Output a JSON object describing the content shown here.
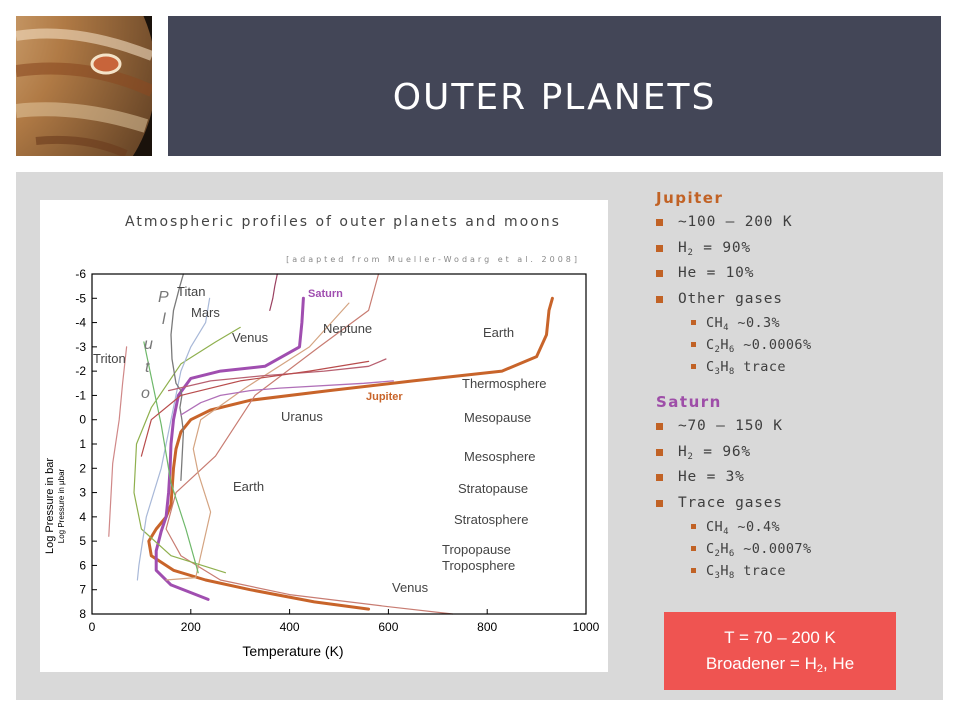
{
  "slide": {
    "title": "OUTER PLANETS",
    "image": {
      "subject": "jupiter-image"
    }
  },
  "figure": {
    "title": "Atmospheric profiles of outer planets and moons",
    "credit": "[adapted from Mueller-Wodarg et al. 2008]",
    "xlabel": "Temperature (K)",
    "ylabel": "Log Pressure in bar",
    "ylabel2": "Log Pressure in μbar",
    "pluto_label": [
      "P",
      "l",
      "u",
      "t",
      "o"
    ],
    "labels": {
      "titan": "Titan",
      "mars": "Mars",
      "venus_top": "Venus",
      "triton": "Triton",
      "saturn": "Saturn",
      "neptune": "Neptune",
      "earth_top": "Earth",
      "thermosphere": "Thermosphere",
      "jupiter": "Jupiter",
      "uranus": "Uranus",
      "mesopause": "Mesopause",
      "mesosphere": "Mesosphere",
      "earth_bottom": "Earth",
      "stratopause": "Stratopause",
      "stratosphere": "Stratosphere",
      "tropopause": "Tropopause",
      "troposphere": "Troposphere",
      "venus_bottom": "Venus"
    }
  },
  "chart_data": {
    "type": "line",
    "title": "Atmospheric profiles of outer planets and moons",
    "xlabel": "Temperature (K)",
    "ylabel": "Log Pressure in bar",
    "xlim": [
      0,
      1000
    ],
    "ylim": [
      8,
      -6
    ],
    "xticks": [
      "0",
      "200",
      "400",
      "600",
      "800",
      "1000"
    ],
    "yticks": [
      "-6",
      "-5",
      "-4",
      "-3",
      "-2",
      "-1",
      "0",
      "1",
      "2",
      "3",
      "4",
      "5",
      "6",
      "7",
      "8"
    ],
    "colors": {
      "jupiter": "#c8642a",
      "saturn": "#a04eb0",
      "jupiter_label": "#c8642a",
      "saturn_label": "#a04eb0"
    },
    "series": [
      {
        "name": "Jupiter",
        "color": "#c8642a",
        "width": 3,
        "x": [
          560,
          450,
          320,
          230,
          165,
          120,
          115,
          130,
          150,
          160,
          165,
          170,
          180,
          200,
          240,
          320,
          480,
          650,
          830,
          900,
          920,
          925,
          932
        ],
        "y": [
          7.8,
          7.5,
          7,
          6.6,
          6.2,
          5.6,
          5,
          4.5,
          4,
          3.5,
          2,
          1.2,
          0.5,
          0,
          -0.4,
          -0.8,
          -1.2,
          -1.6,
          -2,
          -2.6,
          -3.5,
          -4.5,
          -5
        ]
      },
      {
        "name": "Saturn",
        "color": "#a04eb0",
        "width": 3,
        "x": [
          235,
          160,
          130,
          130,
          140,
          150,
          155,
          158,
          160,
          165,
          175,
          200,
          260,
          350,
          420,
          425,
          428
        ],
        "y": [
          7.4,
          6.8,
          6.2,
          5.4,
          4.6,
          4,
          3,
          2,
          1,
          0,
          -1,
          -1.7,
          -2,
          -2.2,
          -3,
          -4,
          -5
        ]
      },
      {
        "name": "",
        "color": "#c87c72",
        "width": 1.2,
        "x": [
          730,
          600,
          400,
          260,
          180,
          150,
          170,
          250,
          330,
          460,
          560,
          580
        ],
        "y": [
          8,
          7.7,
          7.2,
          6.6,
          5.6,
          4.5,
          3,
          1.5,
          -1,
          -3,
          -4.5,
          -6
        ]
      },
      {
        "name": "",
        "color": "#d4a482",
        "width": 1.2,
        "x": [
          150,
          210,
          240,
          215,
          205,
          220,
          310,
          440,
          520
        ],
        "y": [
          6.6,
          6.5,
          3.8,
          2.2,
          1.2,
          0,
          -1.3,
          -3,
          -4.8
        ]
      },
      {
        "name": "",
        "color": "#8fb04e",
        "width": 1.2,
        "x": [
          270,
          160,
          100,
          85,
          90,
          120,
          180,
          250,
          300
        ],
        "y": [
          6.3,
          5.6,
          4.5,
          3,
          1,
          -0.5,
          -2.3,
          -3.2,
          -3.8
        ]
      },
      {
        "name": "",
        "color": "#a8b8d8",
        "width": 1.2,
        "x": [
          92,
          95,
          110,
          140,
          160,
          180,
          200,
          230,
          238
        ],
        "y": [
          6.6,
          6,
          4,
          2,
          0,
          -2,
          -3,
          -4,
          -5
        ]
      },
      {
        "name": "",
        "color": "#6eb86a",
        "width": 1.2,
        "x": [
          215,
          190,
          160,
          140,
          105
        ],
        "y": [
          6.3,
          4.5,
          2.6,
          0.2,
          -3.2
        ]
      },
      {
        "name": "",
        "color": "#7a7a7a",
        "width": 1.3,
        "x": [
          180,
          185,
          182,
          178,
          182,
          180,
          170,
          162,
          160,
          165,
          178,
          185
        ],
        "y": [
          2.5,
          0.5,
          0,
          -0.5,
          -1,
          -1.2,
          -1.5,
          -2.5,
          -3.5,
          -4.5,
          -5.5,
          -6
        ]
      },
      {
        "name": "",
        "color": "#b86070",
        "width": 1.3,
        "x": [
          155,
          240,
          340,
          470,
          560,
          595
        ],
        "y": [
          -1.2,
          -1.6,
          -1.8,
          -2,
          -2.2,
          -2.5
        ]
      },
      {
        "name": "",
        "color": "#b070b8",
        "width": 1.3,
        "x": [
          180,
          220,
          260,
          320,
          380,
          550,
          610
        ],
        "y": [
          -0.2,
          -0.7,
          -1,
          -1.2,
          -1.3,
          -1.5,
          -1.6
        ]
      },
      {
        "name": "",
        "color": "#d08888",
        "width": 1.2,
        "x": [
          70,
          62,
          55,
          42,
          34
        ],
        "y": [
          -3,
          -1.5,
          0,
          1.8,
          4.8
        ]
      },
      {
        "name": "",
        "color": "#b84c4c",
        "width": 1.2,
        "x": [
          560,
          440,
          300,
          180,
          120,
          100
        ],
        "y": [
          -2.4,
          -2,
          -1.6,
          -1,
          0,
          1.5
        ]
      },
      {
        "name": "",
        "color": "#9a4060",
        "width": 1.2,
        "x": [
          360,
          366,
          370,
          375
        ],
        "y": [
          -4.5,
          -5,
          -5.5,
          -6
        ]
      }
    ]
  },
  "jupiter": {
    "heading": "Jupiter",
    "items": [
      {
        "text": "~100 – 200 K"
      },
      {
        "pre": "H",
        "sub": "2",
        "post": " = 90%"
      },
      {
        "text": "He = 10%"
      },
      {
        "text": "Other gases"
      }
    ],
    "subitems": [
      {
        "a": "CH",
        "as": "4",
        "b": " ~0.3%"
      },
      {
        "a": "C",
        "as": "2",
        "b": "H",
        "bs": "6",
        "c": " ~0.0006%"
      },
      {
        "a": "C",
        "as": "3",
        "b": "H",
        "bs": "8",
        "c": " trace"
      }
    ]
  },
  "saturn": {
    "heading": "Saturn",
    "items": [
      {
        "text": "~70 – 150 K"
      },
      {
        "pre": "H",
        "sub": "2",
        "post": " = 96%"
      },
      {
        "text": "He = 3%"
      },
      {
        "text": "Trace gases"
      }
    ],
    "subitems": [
      {
        "a": "CH",
        "as": "4",
        "b": " ~0.4%"
      },
      {
        "a": "C",
        "as": "2",
        "b": "H",
        "bs": "6",
        "c": " ~0.0007%"
      },
      {
        "a": "C",
        "as": "3",
        "b": "H",
        "bs": "8",
        "c": " trace"
      }
    ]
  },
  "summary": {
    "line1": "T = 70 – 200 K",
    "line2_pre": "Broadener = H",
    "line2_sub": "2",
    "line2_post": ", He"
  },
  "colors": {
    "header_bg": "#434657",
    "content_bg": "#d9d9d9",
    "accent_orange": "#c16225",
    "jupiter_heading": "#c16225",
    "saturn_heading": "#9e4ea8",
    "summary_bg": "#ef5451"
  }
}
